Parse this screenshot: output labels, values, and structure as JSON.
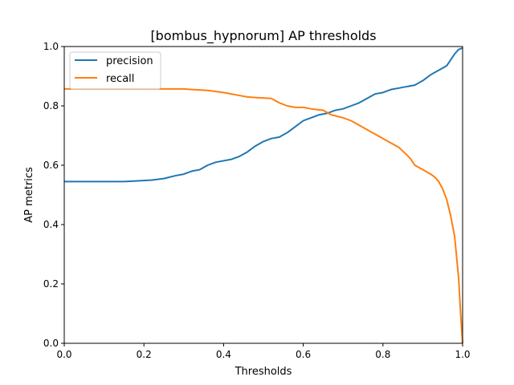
{
  "chart_data": {
    "type": "line",
    "title": "[bombus_hypnorum] AP thresholds",
    "xlabel": "Thresholds",
    "ylabel": "AP metrics",
    "xlim": [
      0.0,
      1.0
    ],
    "ylim": [
      0.0,
      1.0
    ],
    "xticks": [
      "0.0",
      "0.2",
      "0.4",
      "0.6",
      "0.8",
      "1.0"
    ],
    "yticks": [
      "0.0",
      "0.2",
      "0.4",
      "0.6",
      "0.8",
      "1.0"
    ],
    "grid": false,
    "legend_position": "upper-left",
    "series": [
      {
        "name": "precision",
        "color": "#1f77b4",
        "x": [
          0.0,
          0.05,
          0.1,
          0.15,
          0.18,
          0.22,
          0.25,
          0.28,
          0.3,
          0.32,
          0.34,
          0.36,
          0.38,
          0.4,
          0.42,
          0.44,
          0.46,
          0.48,
          0.5,
          0.52,
          0.54,
          0.56,
          0.58,
          0.6,
          0.62,
          0.64,
          0.66,
          0.68,
          0.7,
          0.72,
          0.74,
          0.76,
          0.78,
          0.8,
          0.82,
          0.84,
          0.86,
          0.88,
          0.9,
          0.92,
          0.94,
          0.96,
          0.97,
          0.98,
          0.99,
          1.0
        ],
        "values": [
          0.545,
          0.545,
          0.545,
          0.545,
          0.547,
          0.55,
          0.555,
          0.565,
          0.57,
          0.58,
          0.585,
          0.6,
          0.61,
          0.615,
          0.62,
          0.63,
          0.645,
          0.665,
          0.68,
          0.69,
          0.695,
          0.71,
          0.73,
          0.75,
          0.76,
          0.77,
          0.775,
          0.785,
          0.79,
          0.8,
          0.81,
          0.825,
          0.84,
          0.845,
          0.855,
          0.86,
          0.865,
          0.87,
          0.885,
          0.905,
          0.92,
          0.935,
          0.955,
          0.975,
          0.99,
          0.995
        ]
      },
      {
        "name": "recall",
        "color": "#ff7f0e",
        "x": [
          0.0,
          0.1,
          0.2,
          0.3,
          0.32,
          0.36,
          0.4,
          0.44,
          0.46,
          0.48,
          0.52,
          0.54,
          0.56,
          0.58,
          0.6,
          0.62,
          0.65,
          0.67,
          0.7,
          0.72,
          0.74,
          0.76,
          0.78,
          0.8,
          0.82,
          0.84,
          0.86,
          0.87,
          0.88,
          0.9,
          0.92,
          0.93,
          0.94,
          0.95,
          0.96,
          0.97,
          0.98,
          0.99,
          0.995,
          1.0
        ],
        "values": [
          0.857,
          0.857,
          0.857,
          0.857,
          0.855,
          0.852,
          0.845,
          0.835,
          0.83,
          0.828,
          0.825,
          0.81,
          0.8,
          0.795,
          0.795,
          0.79,
          0.785,
          0.77,
          0.76,
          0.75,
          0.735,
          0.72,
          0.705,
          0.69,
          0.675,
          0.66,
          0.635,
          0.62,
          0.6,
          0.585,
          0.57,
          0.56,
          0.545,
          0.52,
          0.485,
          0.43,
          0.36,
          0.22,
          0.1,
          0.0
        ]
      }
    ]
  }
}
